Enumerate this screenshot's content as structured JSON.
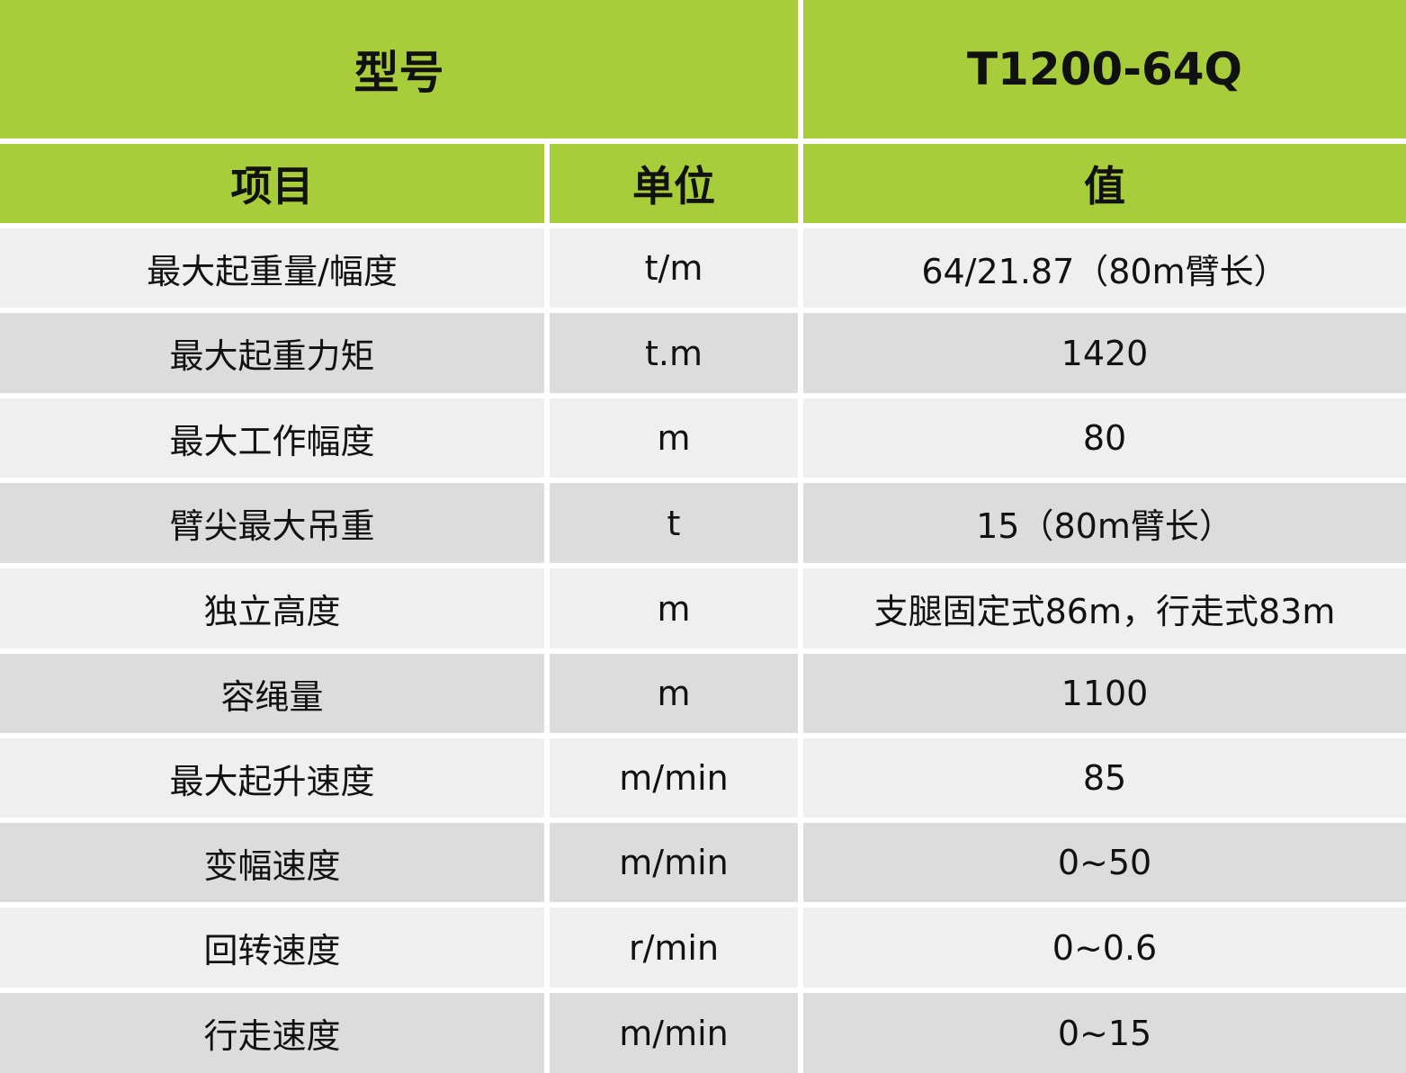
{
  "header": {
    "model_label": "型号",
    "model_value": "T1200-64Q"
  },
  "columns": [
    "项目",
    "单位",
    "值"
  ],
  "colors": {
    "header_green": "#a8cd3a",
    "row_light": "#efefef",
    "row_dark": "#dcdcdc"
  },
  "rows": [
    {
      "item": "最大起重量/幅度",
      "unit": "t/m",
      "value": "64/21.87（80m臂长）"
    },
    {
      "item": "最大起重力矩",
      "unit": "t.m",
      "value": "1420"
    },
    {
      "item": "最大工作幅度",
      "unit": "m",
      "value": "80"
    },
    {
      "item": "臂尖最大吊重",
      "unit": "t",
      "value": "15（80m臂长）"
    },
    {
      "item": "独立高度",
      "unit": "m",
      "value": "支腿固定式86m，行走式83m"
    },
    {
      "item": "容绳量",
      "unit": "m",
      "value": "1100"
    },
    {
      "item": "最大起升速度",
      "unit": "m/min",
      "value": "85"
    },
    {
      "item": "变幅速度",
      "unit": "m/min",
      "value": "0~50"
    },
    {
      "item": "回转速度",
      "unit": "r/min",
      "value": "0~0.6"
    },
    {
      "item": "行走速度",
      "unit": "m/min",
      "value": "0~15"
    }
  ]
}
